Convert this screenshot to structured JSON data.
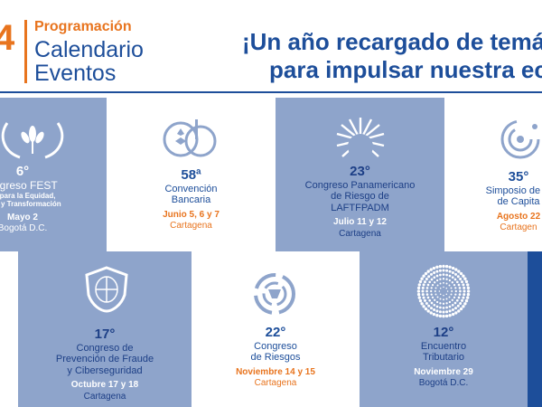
{
  "header": {
    "year_fragment": "4",
    "subtitle": "Programación",
    "title_line1": "Calendario",
    "title_line2": "Eventos",
    "headline_line1": "¡Un año recargado de temát",
    "headline_line2": "para impulsar nuestra eco"
  },
  "colors": {
    "brand_blue": "#1d4e9a",
    "accent_orange": "#e8741e",
    "panel_blue": "#8ea4cb"
  },
  "events": [
    {
      "number": "6°",
      "title": "ongreso FEST",
      "subtitle_line1": "as para la Equidad,",
      "subtitle_line2": "idad y Transformación",
      "date": "Mayo 2",
      "city": "Bogotá D.C.",
      "icon": "leaf-wreath-icon"
    },
    {
      "number": "58ª",
      "title_line1": "Convención",
      "title_line2": "Bancaria",
      "date": "Junio 5, 6 y 7",
      "city": "Cartagena",
      "icon": "bank-logo-icon"
    },
    {
      "number": "23°",
      "title_line1": "Congreso Panamericano",
      "title_line2": "de Riesgo de",
      "title_line3": "LAFTFPADM",
      "date": "Julio 11 y 12",
      "city": "Cartagena",
      "icon": "sunburst-icon"
    },
    {
      "number": "35°",
      "title_line1": "Simposio de M",
      "title_line2": "de Capita",
      "date": "Agosto 22",
      "city": "Cartagen",
      "icon": "spiral-dots-icon"
    },
    {
      "number": "17°",
      "title_line1": "Congreso de",
      "title_line2": "Prevención de Fraude",
      "title_line3": "y Ciberseguridad",
      "date": "Octubre 17 y 18",
      "city": "Cartagena",
      "icon": "shield-globe-icon"
    },
    {
      "number": "22°",
      "title_line1": "Congreso",
      "title_line2": "de Riesgos",
      "date": "Noviembre 14 y 15",
      "city": "Cartagena",
      "icon": "circular-arrows-icon"
    },
    {
      "number": "12°",
      "title_line1": "Encuentro",
      "title_line2": "Tributario",
      "date": "Noviembre 29",
      "city": "Bogotá D.C.",
      "icon": "dot-sphere-icon"
    }
  ]
}
